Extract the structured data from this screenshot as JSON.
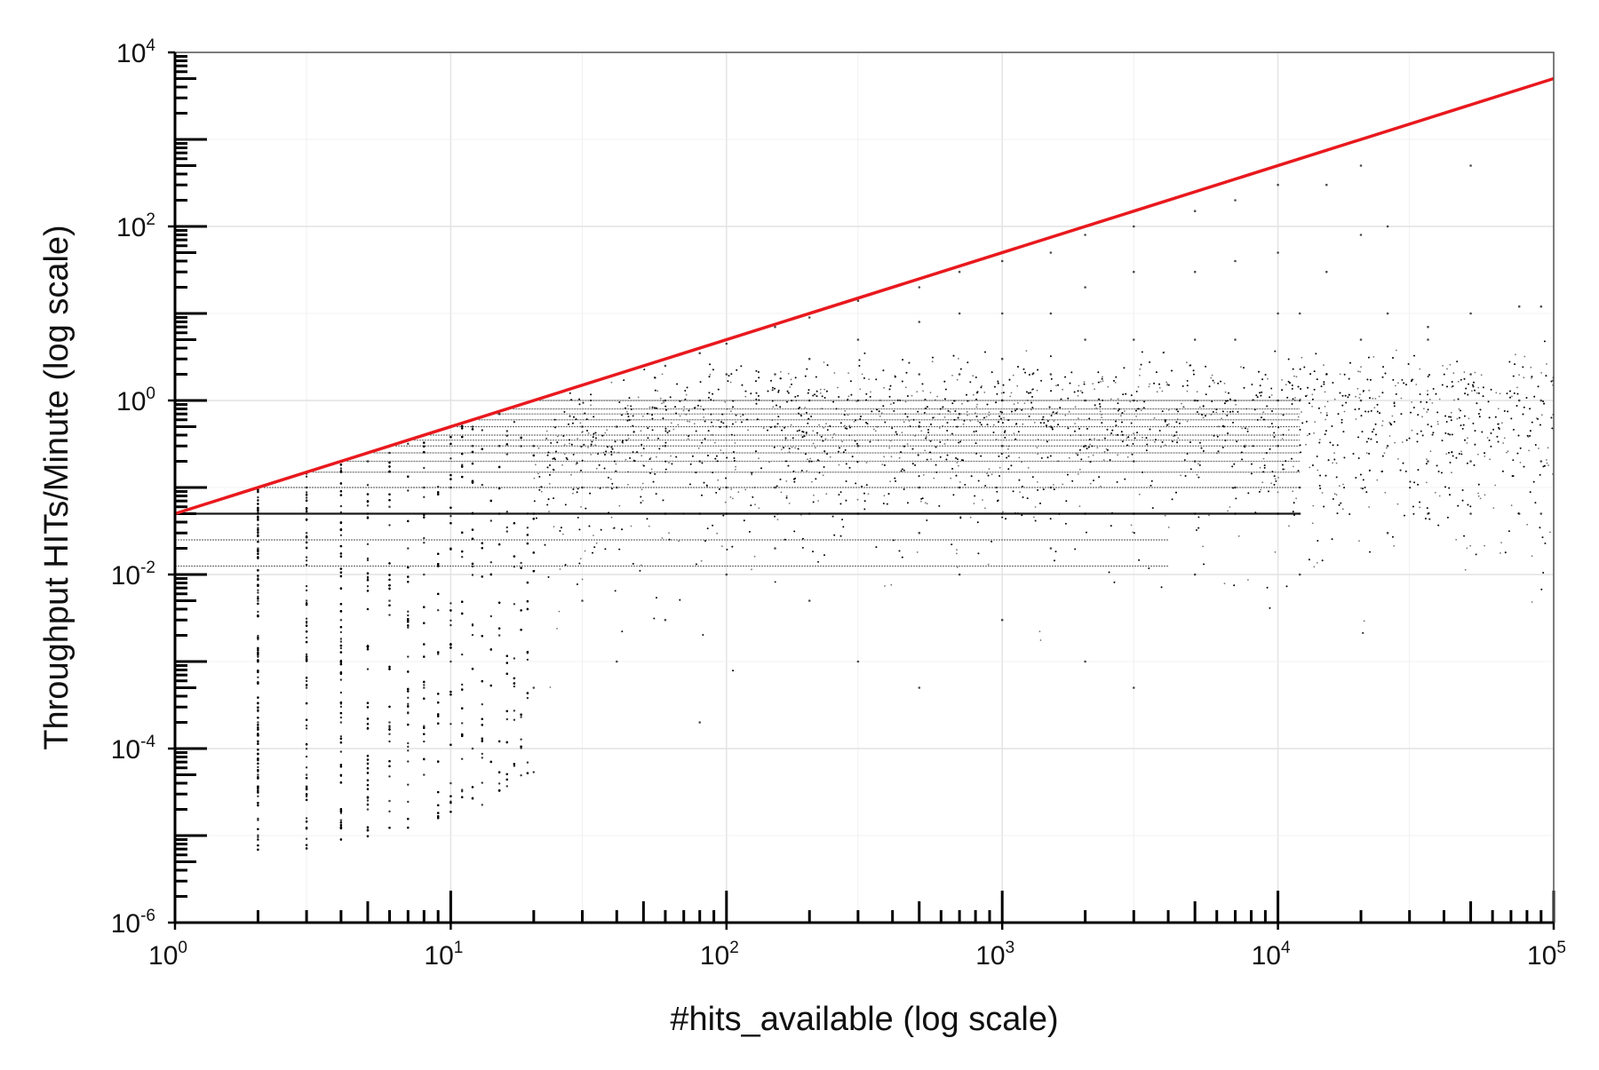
{
  "chart_data": {
    "type": "scatter",
    "title": "",
    "xlabel": "#hits_available (log scale)",
    "ylabel": "Throughput HITs/Minute (log scale)",
    "x_scale": "log",
    "y_scale": "log",
    "xlim": [
      1,
      100000
    ],
    "ylim": [
      1e-06,
      10000
    ],
    "x_ticks": [
      {
        "value": 1,
        "base": "10",
        "exp": "0"
      },
      {
        "value": 10,
        "base": "10",
        "exp": "1"
      },
      {
        "value": 100,
        "base": "10",
        "exp": "2"
      },
      {
        "value": 1000,
        "base": "10",
        "exp": "3"
      },
      {
        "value": 10000,
        "base": "10",
        "exp": "4"
      },
      {
        "value": 100000,
        "base": "10",
        "exp": "5"
      }
    ],
    "y_ticks": [
      {
        "value": 1e-06,
        "base": "10",
        "exp": "-6"
      },
      {
        "value": 0.0001,
        "base": "10",
        "exp": "-4"
      },
      {
        "value": 0.01,
        "base": "10",
        "exp": "-2"
      },
      {
        "value": 1,
        "base": "10",
        "exp": "0"
      },
      {
        "value": 100,
        "base": "10",
        "exp": "2"
      },
      {
        "value": 10000,
        "base": "10",
        "exp": "4"
      }
    ],
    "grid": true,
    "rug": true,
    "reference_line": {
      "color": "#e8191e",
      "relation": "y = x / 20",
      "points": [
        [
          1,
          0.05
        ],
        [
          100000,
          5000
        ]
      ]
    },
    "series": [
      {
        "marker_color": "#000000",
        "description_of_cloud": "dense scatter below the red line",
        "points": [
          [
            2,
            0.05
          ],
          [
            2,
            0.02
          ],
          [
            2,
            0.005
          ],
          [
            2,
            0.001
          ],
          [
            2,
            0.0002
          ],
          [
            2,
            5e-05
          ],
          [
            2,
            9e-06
          ],
          [
            3,
            0.1
          ],
          [
            3,
            0.03
          ],
          [
            3,
            0.005
          ],
          [
            3,
            0.0005
          ],
          [
            3,
            5e-05
          ],
          [
            3,
            1.2e-05
          ],
          [
            4,
            0.15
          ],
          [
            4,
            0.04
          ],
          [
            4,
            0.003
          ],
          [
            4,
            0.0002
          ],
          [
            4,
            1.5e-05
          ],
          [
            5,
            0.2
          ],
          [
            5,
            0.05
          ],
          [
            5,
            0.004
          ],
          [
            5,
            0.0003
          ],
          [
            5,
            2e-05
          ],
          [
            6,
            0.25
          ],
          [
            6,
            0.06
          ],
          [
            6,
            0.005
          ],
          [
            6,
            0.0002
          ],
          [
            6,
            2.5e-05
          ],
          [
            8,
            0.4
          ],
          [
            8,
            0.1
          ],
          [
            8,
            0.01
          ],
          [
            8,
            0.0005
          ],
          [
            8,
            5e-05
          ],
          [
            10,
            0.5
          ],
          [
            10,
            0.1
          ],
          [
            10,
            0.02
          ],
          [
            10,
            0.001
          ],
          [
            10,
            4e-05
          ],
          [
            12,
            0.5
          ],
          [
            12,
            0.3
          ],
          [
            12,
            0.05
          ],
          [
            12,
            0.0001
          ],
          [
            15,
            0.7
          ],
          [
            15,
            0.3
          ],
          [
            15,
            0.05
          ],
          [
            15,
            0.002
          ],
          [
            20,
            1.0
          ],
          [
            20,
            0.3
          ],
          [
            20,
            0.05
          ],
          [
            20,
            0.0005
          ],
          [
            30,
            1.5
          ],
          [
            30,
            0.5
          ],
          [
            30,
            0.1
          ],
          [
            30,
            0.005
          ],
          [
            40,
            2.0
          ],
          [
            40,
            0.5
          ],
          [
            40,
            0.1
          ],
          [
            40,
            0.001
          ],
          [
            60,
            2.5
          ],
          [
            60,
            1.0
          ],
          [
            60,
            0.3
          ],
          [
            60,
            0.05
          ],
          [
            60,
            0.003
          ],
          [
            80,
            3.5
          ],
          [
            80,
            1.0
          ],
          [
            80,
            0.2
          ],
          [
            80,
            0.05
          ],
          [
            80,
            0.0002
          ],
          [
            100,
            4.5
          ],
          [
            100,
            2.0
          ],
          [
            100,
            0.5
          ],
          [
            100,
            0.1
          ],
          [
            100,
            0.05
          ],
          [
            100,
            0.01
          ],
          [
            150,
            7.0
          ],
          [
            150,
            2.0
          ],
          [
            150,
            0.5
          ],
          [
            150,
            0.1
          ],
          [
            150,
            0.02
          ],
          [
            200,
            9.0
          ],
          [
            200,
            3.0
          ],
          [
            200,
            1.0
          ],
          [
            200,
            0.2
          ],
          [
            200,
            0.05
          ],
          [
            200,
            0.005
          ],
          [
            300,
            14.0
          ],
          [
            300,
            5.0
          ],
          [
            300,
            1.0
          ],
          [
            300,
            0.3
          ],
          [
            300,
            0.05
          ],
          [
            300,
            0.001
          ],
          [
            500,
            20.0
          ],
          [
            500,
            8.0
          ],
          [
            500,
            2.0
          ],
          [
            500,
            0.5
          ],
          [
            500,
            0.1
          ],
          [
            500,
            0.03
          ],
          [
            500,
            0.0005
          ],
          [
            700,
            30.0
          ],
          [
            700,
            10.0
          ],
          [
            700,
            2.0
          ],
          [
            700,
            0.7
          ],
          [
            700,
            0.1
          ],
          [
            700,
            0.01
          ],
          [
            1000,
            40.0
          ],
          [
            1000,
            10.0
          ],
          [
            1000,
            3.0
          ],
          [
            1000,
            1.0
          ],
          [
            1000,
            0.3
          ],
          [
            1000,
            0.05
          ],
          [
            1000,
            0.003
          ],
          [
            1500,
            50.0
          ],
          [
            1500,
            10.0
          ],
          [
            1500,
            2.0
          ],
          [
            1500,
            0.5
          ],
          [
            1500,
            0.1
          ],
          [
            1500,
            0.02
          ],
          [
            2000,
            80.0
          ],
          [
            2000,
            20.0
          ],
          [
            2000,
            5.0
          ],
          [
            2000,
            1.0
          ],
          [
            2000,
            0.3
          ],
          [
            2000,
            0.05
          ],
          [
            2000,
            0.001
          ],
          [
            3000,
            100.0
          ],
          [
            3000,
            30.0
          ],
          [
            3000,
            5.0
          ],
          [
            3000,
            1.0
          ],
          [
            3000,
            0.2
          ],
          [
            3000,
            0.05
          ],
          [
            3000,
            0.0005
          ],
          [
            5000,
            150.0
          ],
          [
            5000,
            30.0
          ],
          [
            5000,
            5.0
          ],
          [
            5000,
            1.0
          ],
          [
            5000,
            0.2
          ],
          [
            5000,
            0.05
          ],
          [
            5000,
            0.01
          ],
          [
            7000,
            200.0
          ],
          [
            7000,
            40.0
          ],
          [
            7000,
            5.0
          ],
          [
            7000,
            1.0
          ],
          [
            7000,
            0.1
          ],
          [
            7000,
            0.05
          ],
          [
            10000,
            300.0
          ],
          [
            10000,
            50.0
          ],
          [
            10000,
            10.0
          ],
          [
            10000,
            1.0
          ],
          [
            10000,
            0.3
          ],
          [
            10000,
            0.05
          ],
          [
            12000,
            10.0
          ],
          [
            12000,
            1.0
          ],
          [
            12000,
            0.1
          ],
          [
            12000,
            0.05
          ],
          [
            12000,
            0.01
          ],
          [
            15000,
            300.0
          ],
          [
            15000,
            30.0
          ],
          [
            15000,
            2.0
          ],
          [
            20000,
            500.0
          ],
          [
            20000,
            80.0
          ],
          [
            20000,
            5.0
          ],
          [
            20000,
            1.0
          ],
          [
            25000,
            100.0
          ],
          [
            25000,
            10.0
          ],
          [
            25000,
            0.3
          ],
          [
            25000,
            0.03
          ],
          [
            35000,
            7.0
          ],
          [
            35000,
            5.0
          ],
          [
            35000,
            0.2
          ],
          [
            35000,
            0.05
          ],
          [
            50000,
            10.0
          ],
          [
            50000,
            2.0
          ],
          [
            50000,
            0.2
          ],
          [
            50000,
            0.05
          ],
          [
            50000,
            500.0
          ],
          [
            75000,
            12.0
          ],
          [
            75000,
            1.0
          ],
          [
            75000,
            0.05
          ],
          [
            90000,
            12.0
          ],
          [
            90000,
            1.0
          ],
          [
            90000,
            0.2
          ],
          [
            90000,
            0.05
          ]
        ]
      }
    ]
  }
}
